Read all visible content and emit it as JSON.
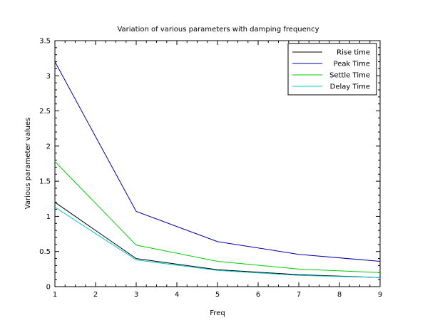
{
  "chart_data": {
    "type": "line",
    "title": "Variation of various parameters with damping frequency",
    "xlabel": "Freq",
    "ylabel": "Various parameter values",
    "x": [
      1,
      3,
      5,
      7,
      9
    ],
    "xlim": [
      1,
      9
    ],
    "ylim": [
      0,
      3.5
    ],
    "xticks": [
      "1",
      "2",
      "3",
      "4",
      "5",
      "6",
      "7",
      "8",
      "9"
    ],
    "yticks": [
      "0",
      "0.5",
      "1",
      "1.5",
      "2",
      "2.5",
      "3",
      "3.5"
    ],
    "grid": false,
    "legend_position": "top-right",
    "series": [
      {
        "name": "Rise time",
        "color": "#000000",
        "values": [
          1.2,
          0.4,
          0.24,
          0.17,
          0.13
        ]
      },
      {
        "name": "Peak Time",
        "color": "#0000aa",
        "values": [
          3.2,
          1.07,
          0.64,
          0.46,
          0.36
        ]
      },
      {
        "name": "Settle Time",
        "color": "#00cc00",
        "values": [
          1.78,
          0.59,
          0.36,
          0.25,
          0.2
        ]
      },
      {
        "name": "Delay Time",
        "color": "#00cccc",
        "values": [
          1.13,
          0.38,
          0.23,
          0.16,
          0.13
        ]
      }
    ]
  }
}
